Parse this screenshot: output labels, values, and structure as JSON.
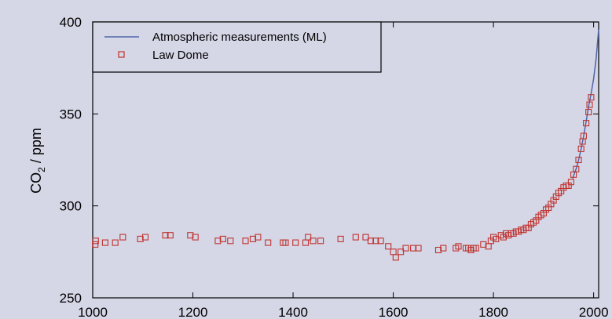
{
  "chart_data": {
    "type": "scatter",
    "title": "",
    "xlabel": "",
    "ylabel": "CO",
    "ylabel_subscript": "2",
    "ylabel_unit": " / ppm",
    "xlim": [
      1000,
      2010
    ],
    "ylim": [
      250,
      400
    ],
    "x_ticks": [
      1000,
      1200,
      1400,
      1600,
      1800,
      2000
    ],
    "y_ticks": [
      250,
      300,
      350,
      400
    ],
    "grid": false,
    "legend_position": "top-left",
    "colors": {
      "line": "#4f64a8",
      "markers": "#c0332e",
      "background": "#d5d6e6"
    },
    "series": [
      {
        "name": "Atmospheric measurements (ML)",
        "kind": "line",
        "x": [
          1958,
          1965,
          1970,
          1975,
          1980,
          1985,
          1990,
          1995,
          2000,
          2005,
          2010
        ],
        "y": [
          315,
          320,
          325,
          331,
          338,
          346,
          354,
          361,
          369,
          380,
          396
        ]
      },
      {
        "name": "Law Dome",
        "kind": "markers",
        "x": [
          1005,
          1006,
          1025,
          1045,
          1060,
          1095,
          1105,
          1145,
          1155,
          1195,
          1205,
          1250,
          1260,
          1275,
          1305,
          1320,
          1330,
          1350,
          1380,
          1385,
          1405,
          1425,
          1430,
          1440,
          1455,
          1495,
          1525,
          1545,
          1555,
          1565,
          1575,
          1590,
          1600,
          1605,
          1615,
          1625,
          1640,
          1650,
          1690,
          1700,
          1725,
          1730,
          1745,
          1750,
          1755,
          1760,
          1765,
          1780,
          1790,
          1795,
          1800,
          1805,
          1815,
          1820,
          1825,
          1830,
          1835,
          1840,
          1845,
          1850,
          1855,
          1860,
          1865,
          1870,
          1875,
          1880,
          1885,
          1890,
          1895,
          1900,
          1905,
          1910,
          1915,
          1920,
          1925,
          1930,
          1935,
          1940,
          1945,
          1950,
          1955,
          1960,
          1965,
          1970,
          1975,
          1978,
          1980,
          1985,
          1990,
          1992,
          1995
        ],
        "y": [
          279,
          281,
          280,
          280,
          283,
          282,
          283,
          284,
          284,
          284,
          283,
          281,
          282,
          281,
          281,
          282,
          283,
          280,
          280,
          280,
          280,
          280,
          283,
          281,
          281,
          282,
          283,
          283,
          281,
          281,
          281,
          278,
          275,
          272,
          275,
          277,
          277,
          277,
          276,
          277,
          277,
          278,
          277,
          277,
          276,
          277,
          277,
          279,
          278,
          281,
          283,
          282,
          284,
          283,
          285,
          284,
          285,
          285,
          286,
          286,
          287,
          287,
          288,
          288,
          290,
          291,
          292,
          294,
          295,
          296,
          298,
          299,
          301,
          303,
          305,
          307,
          308,
          310,
          311,
          311,
          313,
          317,
          320,
          325,
          331,
          335,
          338,
          345,
          351,
          355,
          359
        ]
      }
    ]
  }
}
